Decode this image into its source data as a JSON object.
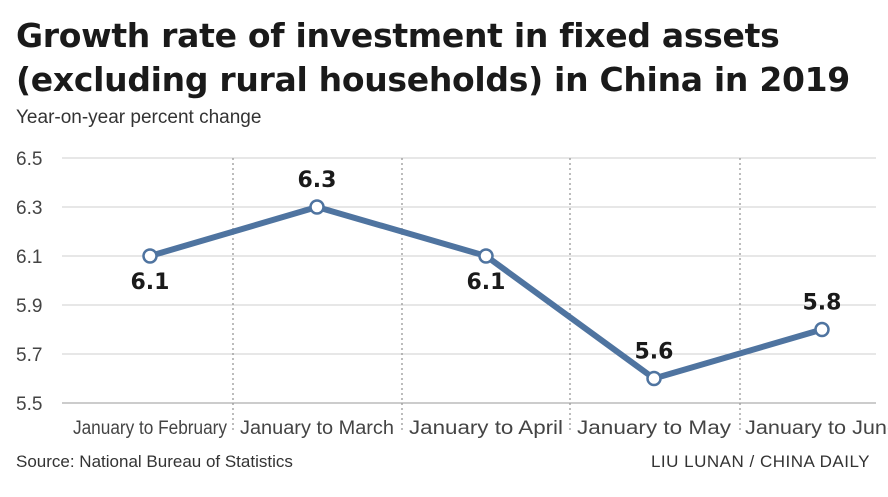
{
  "title_line1": "Growth rate of investment in fixed assets",
  "title_line2": "(excluding rural households) in China in 2019",
  "subtitle": "Year-on-year percent change",
  "source": "Source: National Bureau of Statistics",
  "credit": "LIU LUNAN / CHINA DAILY",
  "colors": {
    "line": "#4f74a0",
    "grid": "#cfcfcf",
    "divider": "#999999"
  },
  "chart_data": {
    "type": "line",
    "categories": [
      "January to February",
      "January to March",
      "January to April",
      "January to May",
      "January to June"
    ],
    "values": [
      6.1,
      6.3,
      6.1,
      5.6,
      5.8
    ],
    "value_labels": [
      "6.1",
      "6.3",
      "6.1",
      "5.6",
      "5.8"
    ],
    "label_position": [
      "below",
      "above",
      "below",
      "above",
      "above"
    ],
    "yticks": [
      "6.5",
      "6.3",
      "6.1",
      "5.9",
      "5.7",
      "5.5"
    ],
    "ylim": [
      5.5,
      6.5
    ],
    "grid": true,
    "legend": "none"
  }
}
